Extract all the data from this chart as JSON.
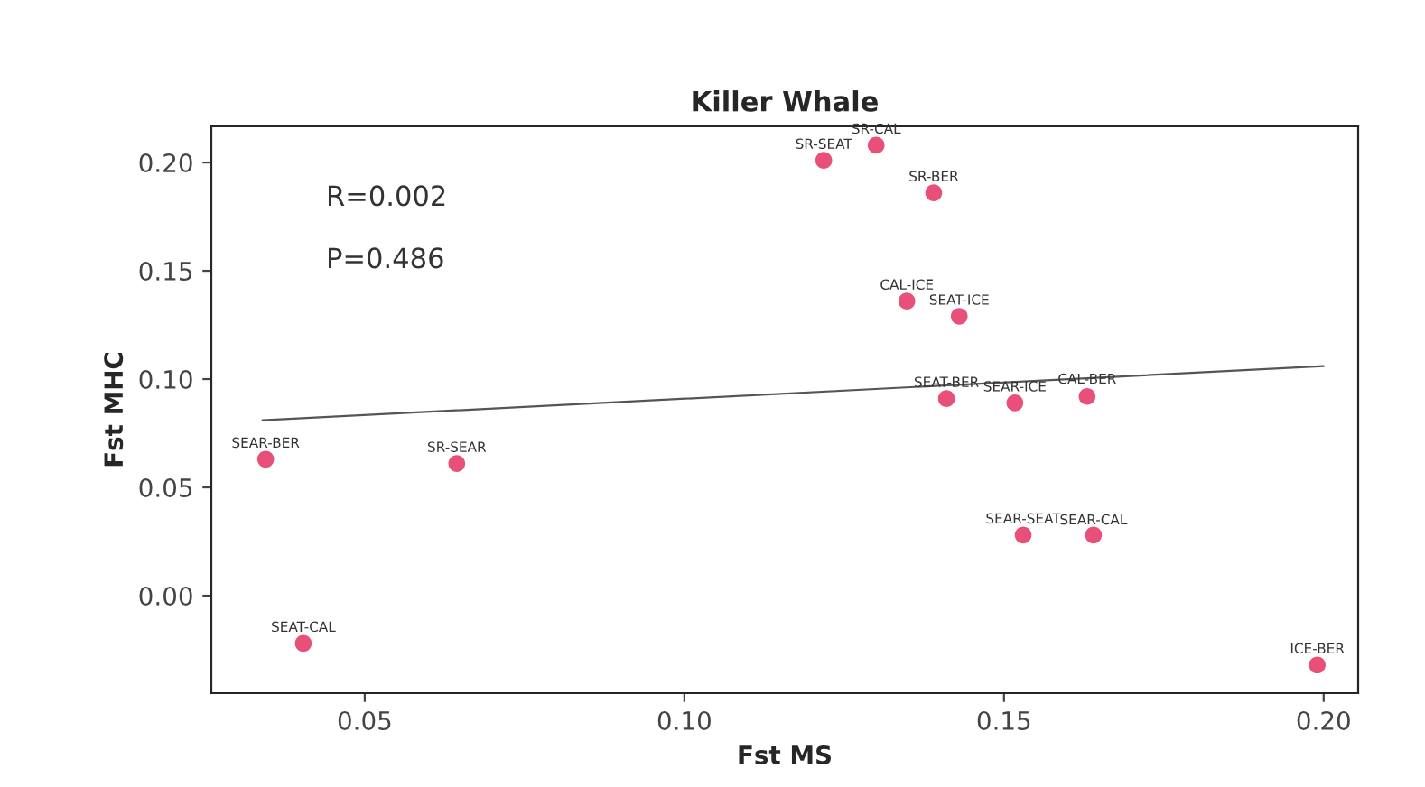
{
  "chart_data": {
    "type": "scatter",
    "title": "Killer Whale",
    "xlabel": "Fst MS",
    "ylabel": "Fst MHC",
    "xlim": [
      0.026,
      0.2054
    ],
    "ylim": [
      -0.045,
      0.2167
    ],
    "xticks": [
      {
        "value": 0.05,
        "label": "0.05"
      },
      {
        "value": 0.1,
        "label": "0.10"
      },
      {
        "value": 0.15,
        "label": "0.15"
      },
      {
        "value": 0.2,
        "label": "0.20"
      }
    ],
    "yticks": [
      {
        "value": 0,
        "label": "0.00"
      },
      {
        "value": 0.05,
        "label": "0.05"
      },
      {
        "value": 0.1,
        "label": "0.10"
      },
      {
        "value": 0.15,
        "label": "0.15"
      },
      {
        "value": 0.2,
        "label": "0.20"
      }
    ],
    "grid": false,
    "legend": false,
    "series": [
      {
        "marker": "circle",
        "color": "#e8507a",
        "x": [
          0.1218,
          0.13,
          0.139,
          0.1348,
          0.143,
          0.141,
          0.1517,
          0.163,
          0.0345,
          0.0644,
          0.0404,
          0.153,
          0.164,
          0.199
        ],
        "values": [
          0.201,
          0.208,
          0.186,
          0.136,
          0.129,
          0.091,
          0.089,
          0.092,
          0.063,
          0.061,
          -0.022,
          0.028,
          0.028,
          -0.032
        ]
      },
      {
        "type": "line",
        "color": "#555555",
        "x": [
          0.034,
          0.2
        ],
        "values": [
          0.081,
          0.106
        ]
      }
    ],
    "annotations": [
      "R=0.002",
      "P=0.486",
      {
        "text": "SR-SEAT",
        "x": 0.1218,
        "y": 0.201
      },
      {
        "text": "SR-CAL",
        "x": 0.13,
        "y": 0.208
      },
      {
        "text": "SR-BER",
        "x": 0.139,
        "y": 0.186
      },
      {
        "text": "CAL-ICE",
        "x": 0.1348,
        "y": 0.136
      },
      {
        "text": "SEAT-ICE",
        "x": 0.143,
        "y": 0.129
      },
      {
        "text": "SEAT-BER",
        "x": 0.141,
        "y": 0.091
      },
      {
        "text": "SEAR-ICE",
        "x": 0.1517,
        "y": 0.089
      },
      {
        "text": "CAL-BER",
        "x": 0.163,
        "y": 0.0925
      },
      {
        "text": "SEAR-BER",
        "x": 0.0345,
        "y": 0.063
      },
      {
        "text": "SR-SEAR",
        "x": 0.0644,
        "y": 0.061
      },
      {
        "text": "SEAT-CAL",
        "x": 0.0404,
        "y": -0.022
      },
      {
        "text": "SEAR-SEAT",
        "x": 0.153,
        "y": 0.028
      },
      {
        "text": "SEAR-CAL",
        "x": 0.164,
        "y": 0.0275
      },
      {
        "text": "ICE-BER",
        "x": 0.199,
        "y": -0.032
      }
    ]
  }
}
